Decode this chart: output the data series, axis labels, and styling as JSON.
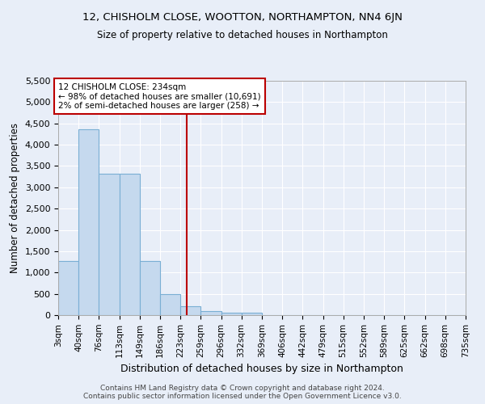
{
  "title1": "12, CHISHOLM CLOSE, WOOTTON, NORTHAMPTON, NN4 6JN",
  "title2": "Size of property relative to detached houses in Northampton",
  "xlabel": "Distribution of detached houses by size in Northampton",
  "ylabel": "Number of detached properties",
  "footnote1": "Contains HM Land Registry data © Crown copyright and database right 2024.",
  "footnote2": "Contains public sector information licensed under the Open Government Licence v3.0.",
  "annotation_line1": "12 CHISHOLM CLOSE: 234sqm",
  "annotation_line2": "← 98% of detached houses are smaller (10,691)",
  "annotation_line3": "2% of semi-detached houses are larger (258) →",
  "property_size": 234,
  "bin_edges": [
    3,
    40,
    76,
    113,
    149,
    186,
    223,
    259,
    296,
    332,
    369,
    406,
    442,
    479,
    515,
    552,
    589,
    625,
    662,
    698,
    735
  ],
  "bar_heights": [
    1265,
    4360,
    3310,
    3310,
    1265,
    490,
    210,
    90,
    55,
    55,
    0,
    0,
    0,
    0,
    0,
    0,
    0,
    0,
    0,
    0
  ],
  "bar_color": "#c5d9ee",
  "bar_edge_color": "#7aafd4",
  "vline_color": "#bb0000",
  "vline_x": 234,
  "ylim": [
    0,
    5500
  ],
  "yticks": [
    0,
    500,
    1000,
    1500,
    2000,
    2500,
    3000,
    3500,
    4000,
    4500,
    5000,
    5500
  ],
  "bg_color": "#e8eef8",
  "plot_bg_color": "#e8eef8",
  "grid_color": "#ffffff",
  "annotation_box_color": "#bb0000",
  "title1_fontsize": 9.5,
  "title2_fontsize": 8.5
}
